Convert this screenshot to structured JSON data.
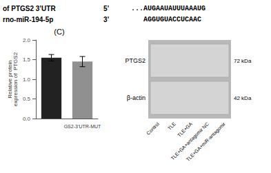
{
  "chart_data": {
    "type": "bar",
    "categories": [
      null,
      "GS2-3’UTR-MUT"
    ],
    "values": [
      1.55,
      1.45
    ],
    "errors": [
      0.08,
      0.13
    ],
    "colors": [
      "#222222",
      "#909090"
    ],
    "ylabel": "Relative protein\nexpression of  PTGS2",
    "ylim": [
      0,
      2.0
    ],
    "yticks": [
      {
        "value": 0,
        "label": "0.0"
      },
      {
        "value": 0.5,
        "label": "0.5"
      },
      {
        "value": 1,
        "label": "1.0"
      },
      {
        "value": 1.5,
        "label": "1.5"
      },
      {
        "value": 2,
        "label": "2.0"
      }
    ],
    "grid": false,
    "annotations": [
      "of PTGS2 3’UTR",
      "5’",
      "...AUGAAUAUUUAAAUG",
      "rno-miR-194-5p",
      "3’",
      "   AGGUGUACCUCAAC",
      "(C)",
      "PTGS2",
      "β-actin",
      "72 kDa",
      "42 kDa",
      "Control",
      "TLE",
      "TLE+GA",
      "TLE+GA+antagomir NC",
      "TLE+GA+miR-antagomir"
    ]
  }
}
